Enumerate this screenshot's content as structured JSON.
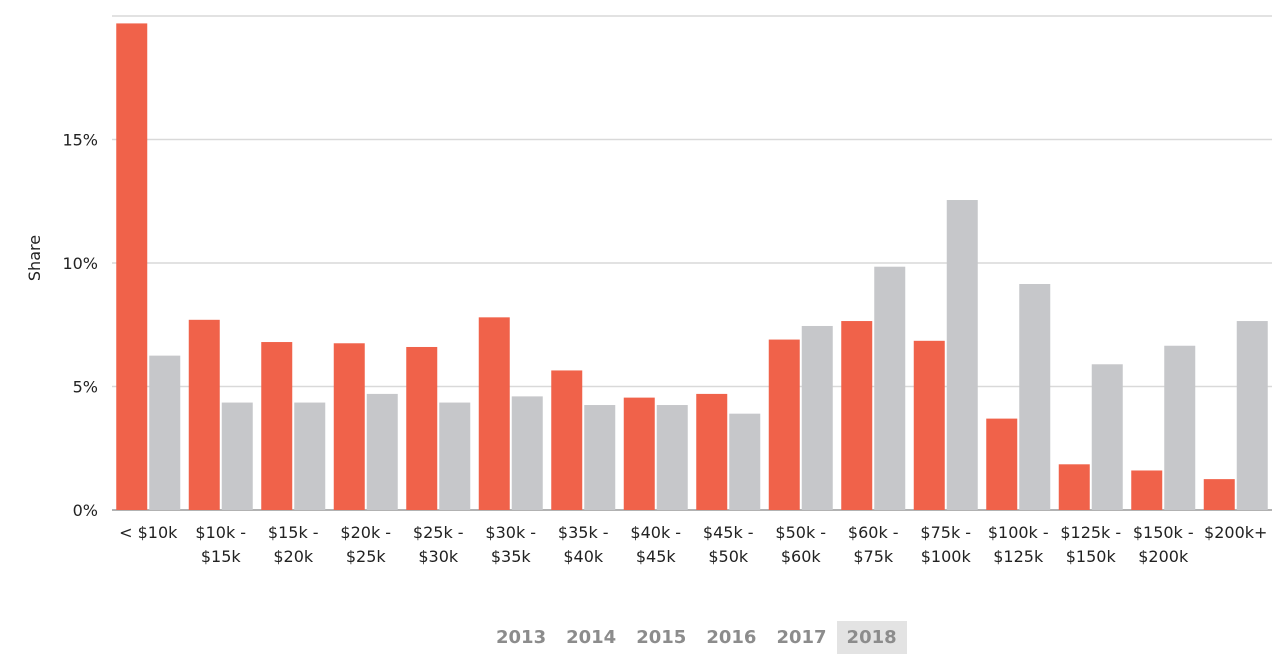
{
  "chart_data": {
    "type": "bar",
    "title": "",
    "xlabel": "",
    "ylabel": "Share",
    "ylim": [
      0,
      20
    ],
    "yticks": [
      0,
      5,
      10,
      15
    ],
    "ytick_labels": [
      "0%",
      "5%",
      "10%",
      "15%"
    ],
    "grid": true,
    "categories": [
      [
        "< $10k"
      ],
      [
        "$10k -",
        "$15k"
      ],
      [
        "$15k -",
        "$20k"
      ],
      [
        "$20k -",
        "$25k"
      ],
      [
        "$25k -",
        "$30k"
      ],
      [
        "$30k -",
        "$35k"
      ],
      [
        "$35k -",
        "$40k"
      ],
      [
        "$40k -",
        "$45k"
      ],
      [
        "$45k -",
        "$50k"
      ],
      [
        "$50k -",
        "$60k"
      ],
      [
        "$60k -",
        "$75k"
      ],
      [
        "$75k -",
        "$100k"
      ],
      [
        "$100k -",
        "$125k"
      ],
      [
        "$125k -",
        "$150k"
      ],
      [
        "$150k -",
        "$200k"
      ],
      [
        "$200k+"
      ]
    ],
    "series": [
      {
        "color": "#f0624a",
        "values": [
          19.7,
          7.7,
          6.8,
          6.75,
          6.6,
          7.8,
          5.65,
          4.55,
          4.7,
          6.9,
          7.65,
          6.85,
          3.7,
          1.85,
          1.6,
          1.25
        ]
      },
      {
        "color": "#c6c7ca",
        "values": [
          6.25,
          4.35,
          4.35,
          4.7,
          4.35,
          4.6,
          4.25,
          4.25,
          3.9,
          7.45,
          9.85,
          12.55,
          9.15,
          5.9,
          6.65,
          7.65
        ]
      }
    ]
  },
  "legend": {
    "years": [
      "2013",
      "2014",
      "2015",
      "2016",
      "2017",
      "2018"
    ],
    "active": "2018"
  }
}
